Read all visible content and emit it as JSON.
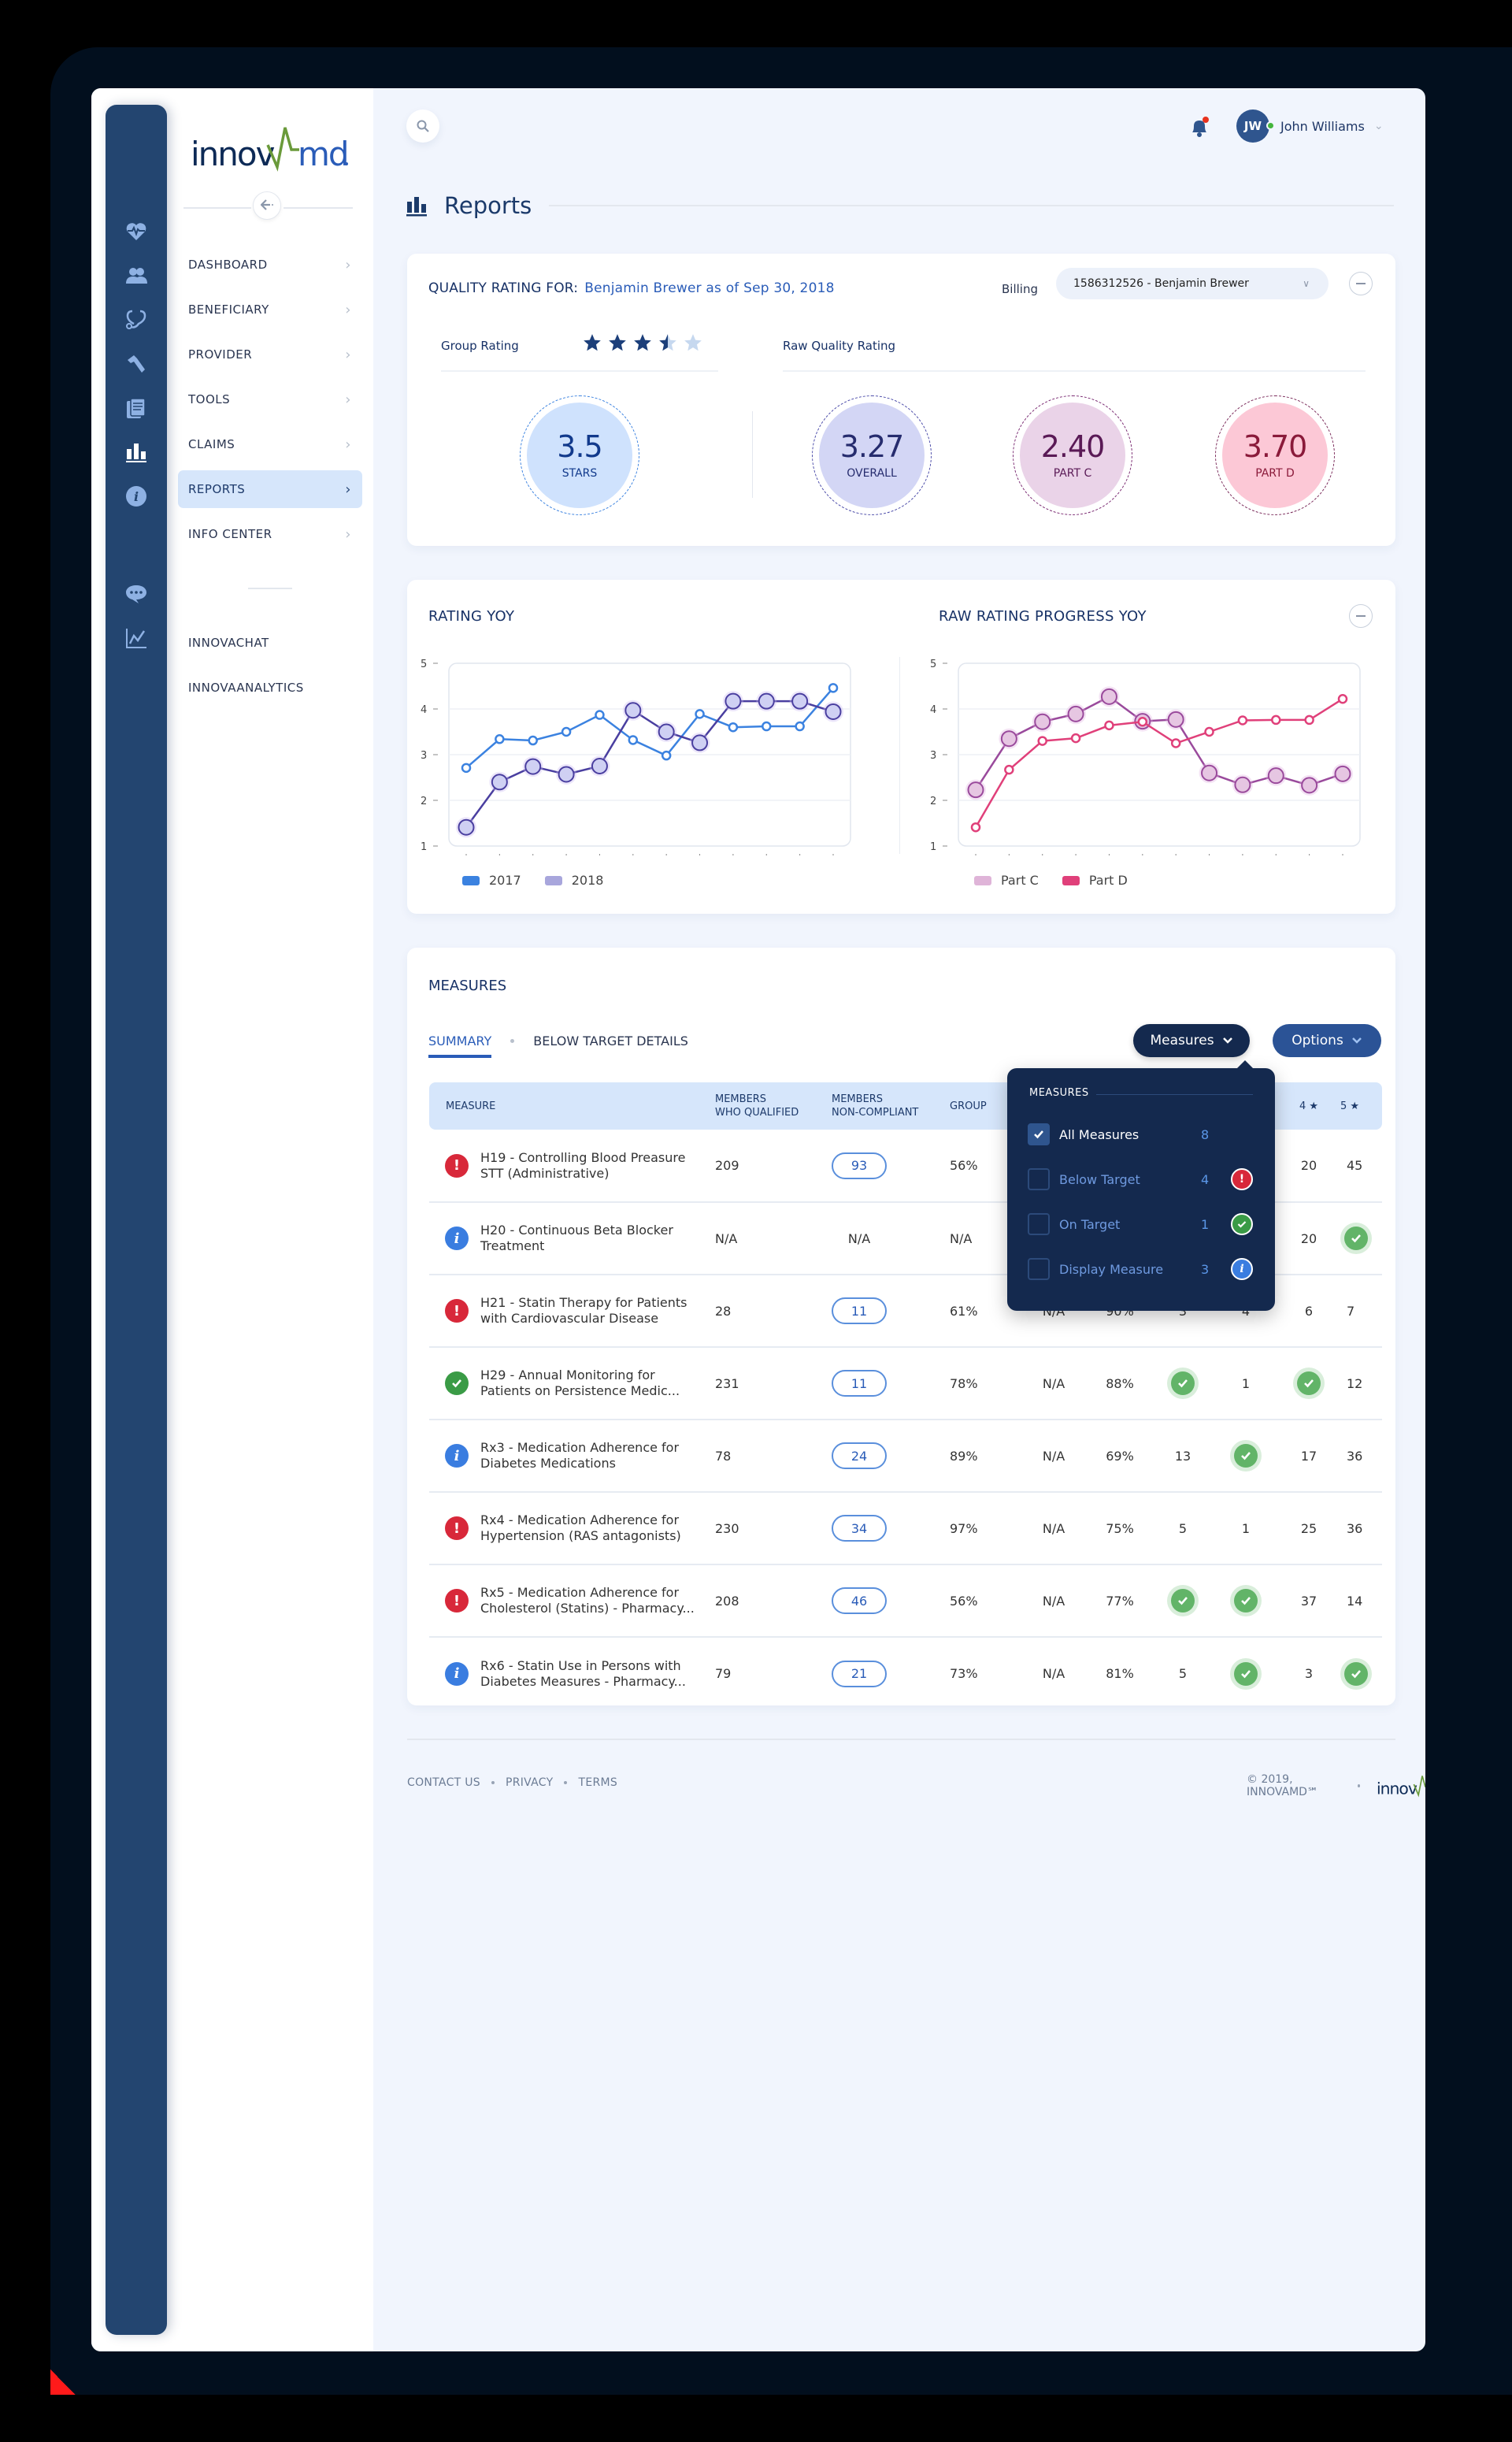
{
  "brand": {
    "logo_text_dark": "innov",
    "logo_text_light": "amd",
    "logo_mark": "a"
  },
  "colors": {
    "rail": "#234570",
    "accent": "#2a5cb8",
    "active_bg": "#d6e6fb",
    "series_2017": "#3b82e0",
    "series_2018": "#5a4aa8",
    "series_part_c": "#9a4a9c",
    "series_part_d": "#e0407a",
    "below": "#d8283a",
    "on": "#3a9b46",
    "info": "#3a7de0"
  },
  "sidebar": {
    "rail_icons": [
      "heart-pulse-icon",
      "users-icon",
      "stethoscope-icon",
      "hammer-icon",
      "documents-icon",
      "bar-chart-icon",
      "info-icon",
      "chat-icon",
      "line-chart-icon"
    ],
    "items": [
      {
        "label": "DASHBOARD",
        "active": false
      },
      {
        "label": "BENEFICIARY",
        "active": false
      },
      {
        "label": "PROVIDER",
        "active": false
      },
      {
        "label": "TOOLS",
        "active": false
      },
      {
        "label": "CLAIMS",
        "active": false
      },
      {
        "label": "REPORTS",
        "active": true
      },
      {
        "label": "INFO CENTER",
        "active": false
      }
    ],
    "secondary": [
      {
        "label": "INNOVACHAT"
      },
      {
        "label": "INNOVAANALYTICS"
      }
    ]
  },
  "header": {
    "user_initials": "JW",
    "user_name": "John Williams",
    "page_title": "Reports"
  },
  "quality": {
    "title": "QUALITY RATING FOR:",
    "subject": "Benjamin Brewer as of Sep 30, 2018",
    "billing_label": "Billing",
    "billing_value": "1586312526 - Benjamin Brewer",
    "group_rating_label": "Group Rating",
    "group_rating_stars": 3.5,
    "raw_label": "Raw Quality Rating",
    "rings": [
      {
        "value": "3.5",
        "label": "STARS"
      },
      {
        "value": "3.27",
        "label": "OVERALL"
      },
      {
        "value": "2.40",
        "label": "PART C"
      },
      {
        "value": "3.70",
        "label": "PART D"
      }
    ]
  },
  "chart_data": [
    {
      "type": "line",
      "title": "RATING YOY",
      "categories": [
        "Jan",
        "Feb",
        "Mar",
        "Apr",
        "May",
        "Jun",
        "Jul",
        "Aug",
        "Sep",
        "Oct",
        "Nov",
        "Dec"
      ],
      "series": [
        {
          "name": "2017",
          "values": [
            2.71,
            3.34,
            3.31,
            3.5,
            3.87,
            3.32,
            2.98,
            3.89,
            3.6,
            3.62,
            3.62,
            4.46
          ]
        },
        {
          "name": "2018",
          "values": [
            1.41,
            2.4,
            2.74,
            2.57,
            2.75,
            3.97,
            3.5,
            3.26,
            4.17,
            4.17,
            4.17,
            3.94
          ]
        }
      ],
      "yticks": [
        1,
        2,
        3,
        4,
        5
      ],
      "ylim": [
        1,
        5
      ],
      "grid": true,
      "legend_position": "bottom-left",
      "xlabel": "",
      "ylabel": ""
    },
    {
      "type": "line",
      "title": "RAW RATING PROGRESS YOY",
      "categories": [
        "Jan",
        "Feb",
        "Mar",
        "Apr",
        "May",
        "Jun",
        "Jul",
        "Aug",
        "Sep",
        "Oct",
        "Nov",
        "Dec"
      ],
      "series": [
        {
          "name": "Part C",
          "values": [
            2.23,
            3.35,
            3.72,
            3.89,
            4.27,
            3.73,
            3.77,
            2.6,
            2.34,
            2.54,
            2.33,
            2.58
          ]
        },
        {
          "name": "Part D",
          "values": [
            1.41,
            2.67,
            3.3,
            3.36,
            3.64,
            3.72,
            3.25,
            3.5,
            3.75,
            3.76,
            3.76,
            4.22
          ]
        }
      ],
      "yticks": [
        1,
        2,
        3,
        4,
        5
      ],
      "ylim": [
        1,
        5
      ],
      "grid": true,
      "legend_position": "bottom-left",
      "xlabel": "",
      "ylabel": ""
    }
  ],
  "measures": {
    "title": "MEASURES",
    "tabs": [
      "SUMMARY",
      "BELOW TARGET DETAILS"
    ],
    "measures_button": "Measures",
    "options_button": "Options",
    "columns": [
      "MEASURE",
      "MEMBERS\nWHO QUALIFIED",
      "MEMBERS\nNON-COMPLIANT",
      "GROUP",
      "",
      "",
      "",
      "",
      "4 ★",
      "5 ★"
    ],
    "rows": [
      {
        "status": "below",
        "name": "H19 - Controlling Blood Preasure STT (Administrative)",
        "qualified": "209",
        "noncompliant": "93",
        "group": "56%",
        "c5": "",
        "c6": "",
        "c7": "",
        "c8": "",
        "c9": "20",
        "c10": "45"
      },
      {
        "status": "info",
        "name": "H20 - Continuous Beta Blocker Treatment",
        "qualified": "N/A",
        "noncompliant": "N/A",
        "group": "N/A",
        "c5": "",
        "c6": "",
        "c7": "",
        "c8": "",
        "c9": "20",
        "c10": "check"
      },
      {
        "status": "below",
        "name": "H21 - Statin Therapy for Patients with Cardiovascular Disease",
        "qualified": "28",
        "noncompliant": "11",
        "group": "61%",
        "c5": "N/A",
        "c6": "90%",
        "c7": "3",
        "c8": "4",
        "c9": "6",
        "c10": "7"
      },
      {
        "status": "on",
        "name": "H29 - Annual Monitoring for Patients on Persistence Medic...",
        "qualified": "231",
        "noncompliant": "11",
        "group": "78%",
        "c5": "N/A",
        "c6": "88%",
        "c7": "check",
        "c8": "1",
        "c9": "check",
        "c10": "12"
      },
      {
        "status": "info",
        "name": "Rx3 - Medication Adherence for Diabetes Medications",
        "qualified": "78",
        "noncompliant": "24",
        "group": "89%",
        "c5": "N/A",
        "c6": "69%",
        "c7": "13",
        "c8": "check",
        "c9": "17",
        "c10": "36"
      },
      {
        "status": "below",
        "name": "Rx4 - Medication Adherence for Hypertension (RAS antagonists)",
        "qualified": "230",
        "noncompliant": "34",
        "group": "97%",
        "c5": "N/A",
        "c6": "75%",
        "c7": "5",
        "c8": "1",
        "c9": "25",
        "c10": "36"
      },
      {
        "status": "below",
        "name": "Rx5 - Medication Adherence for Cholesterol (Statins) - Pharmacy...",
        "qualified": "208",
        "noncompliant": "46",
        "group": "56%",
        "c5": "N/A",
        "c6": "77%",
        "c7": "check",
        "c8": "check",
        "c9": "37",
        "c10": "14"
      },
      {
        "status": "info",
        "name": "Rx6 - Statin Use in Persons with Diabetes Measures - Pharmacy...",
        "qualified": "79",
        "noncompliant": "21",
        "group": "73%",
        "c5": "N/A",
        "c6": "81%",
        "c7": "5",
        "c8": "check",
        "c9": "3",
        "c10": "check"
      }
    ],
    "dropdown": {
      "header": "MEASURES",
      "items": [
        {
          "label": "All Measures",
          "count": "8",
          "checked": true,
          "icon": ""
        },
        {
          "label": "Below Target",
          "count": "4",
          "checked": false,
          "icon": "below"
        },
        {
          "label": "On Target",
          "count": "1",
          "checked": false,
          "icon": "on"
        },
        {
          "label": "Display Measure",
          "count": "3",
          "checked": false,
          "icon": "info"
        }
      ]
    }
  },
  "footer": {
    "links": [
      "CONTACT US",
      "PRIVACY",
      "TERMS"
    ],
    "copyright": "© 2019, INNOVAMD℠"
  }
}
